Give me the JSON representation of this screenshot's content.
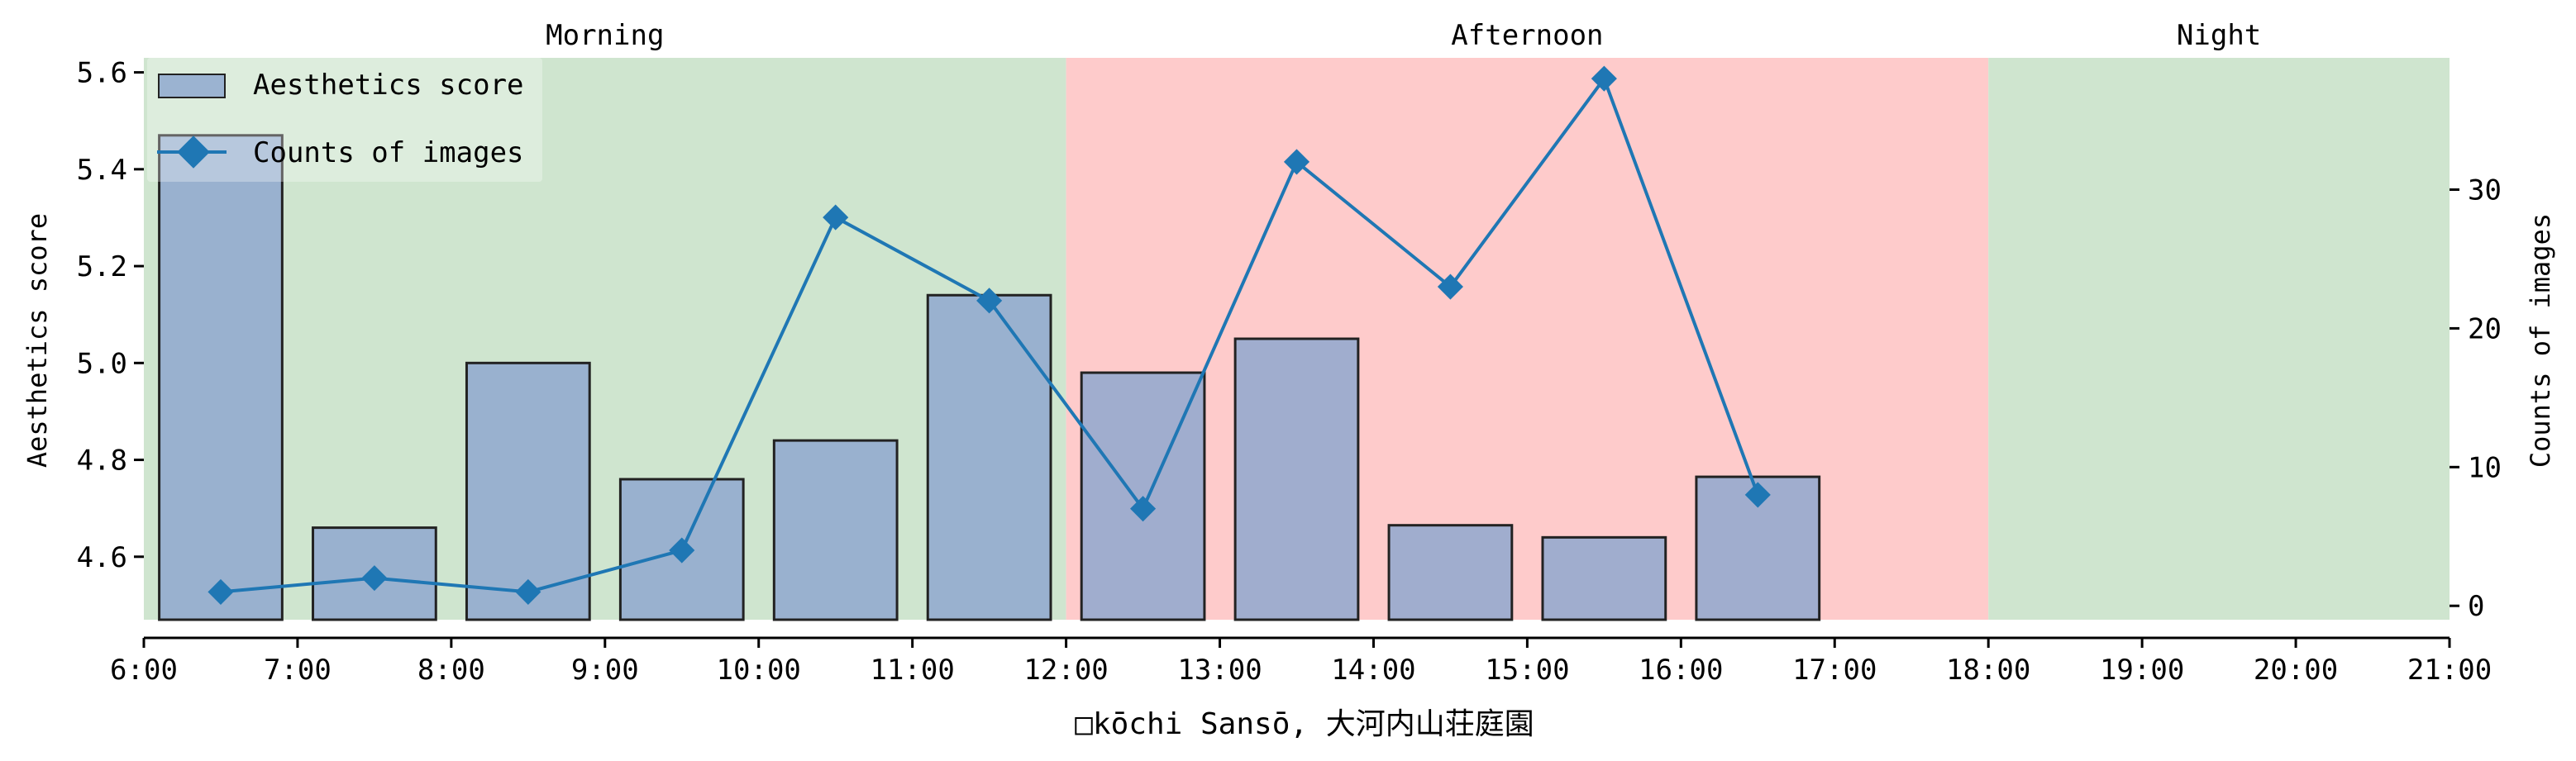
{
  "chart_data": {
    "type": "bar",
    "xlabel": "□kōchi Sansō, 大河内山荘庭園",
    "ylabel_left": "Aesthetics score",
    "ylabel_right": "Counts of images",
    "x_ticks": [
      "6:00",
      "7:00",
      "8:00",
      "9:00",
      "10:00",
      "11:00",
      "12:00",
      "13:00",
      "14:00",
      "15:00",
      "16:00",
      "17:00",
      "18:00",
      "19:00",
      "20:00",
      "21:00"
    ],
    "xlim": [
      6,
      21
    ],
    "ylim_left": [
      4.47,
      5.63
    ],
    "yticks_left": [
      "4.6",
      "4.8",
      "5.0",
      "5.2",
      "5.4",
      "5.6"
    ],
    "ylim_right": [
      -1,
      39.5
    ],
    "yticks_right": [
      "0",
      "10",
      "20",
      "30"
    ],
    "periods": [
      {
        "label": "Morning",
        "start": 6,
        "end": 12,
        "color": "#cfe5cf"
      },
      {
        "label": "Afternoon",
        "start": 12,
        "end": 18,
        "color": "#fecbcb"
      },
      {
        "label": "Night",
        "start": 18,
        "end": 21,
        "color": "#cfe5cf"
      }
    ],
    "bars": {
      "name": "Aesthetics score",
      "x": [
        6.5,
        7.5,
        8.5,
        9.5,
        10.5,
        11.5,
        12.5,
        13.5,
        14.5,
        15.5,
        16.5
      ],
      "values": [
        5.47,
        4.66,
        5.0,
        4.76,
        4.84,
        5.14,
        4.98,
        5.05,
        4.665,
        4.64,
        4.765
      ],
      "color": "#8fa8cf",
      "edge": "#222222"
    },
    "line": {
      "name": "Counts of images",
      "x": [
        6.5,
        7.5,
        8.5,
        9.5,
        10.5,
        11.5,
        12.5,
        13.5,
        14.5,
        15.5,
        16.5
      ],
      "values": [
        1,
        2,
        1,
        4,
        28,
        22,
        7,
        32,
        23,
        38,
        8
      ],
      "color": "#1f77b4"
    },
    "legend": "upper-left",
    "grid": false
  }
}
